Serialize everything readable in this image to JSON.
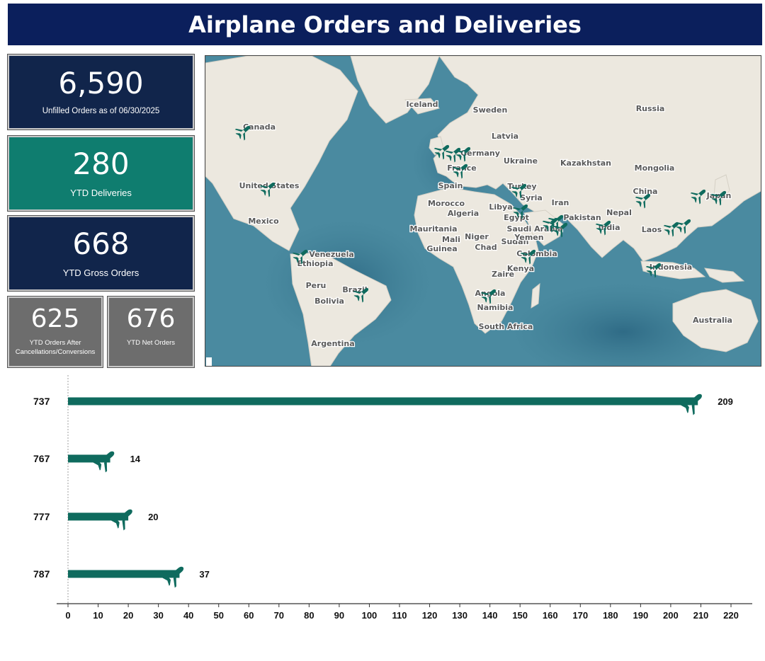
{
  "header": {
    "title": "Airplane Orders and Deliveries"
  },
  "kpis": {
    "unfilled": {
      "value": "6,590",
      "label": "Unfilled Orders as of 06/30/2025"
    },
    "deliveries": {
      "value": "280",
      "label": "YTD Deliveries"
    },
    "gross": {
      "value": "668",
      "label": "YTD Gross Orders"
    },
    "after_cancel": {
      "value": "625",
      "label_line1": "YTD Orders After",
      "label_line2": "Cancellations/Conversions"
    },
    "net": {
      "value": "676",
      "label": "YTD Net Orders"
    }
  },
  "colors": {
    "navy": "#11254b",
    "teal": "#0f7d6f",
    "gray": "#6d6d6d",
    "ocean": "#3f7f95",
    "land": "#ede9e0",
    "bar": "#0f6b5e"
  },
  "map": {
    "labels": [
      {
        "text": "Iceland"
      },
      {
        "text": "Sweden"
      },
      {
        "text": "Russia"
      },
      {
        "text": "Canada"
      },
      {
        "text": "Latvia"
      },
      {
        "text": "Germany"
      },
      {
        "text": "Ukraine"
      },
      {
        "text": "Kazakhstan"
      },
      {
        "text": "Mongolia"
      },
      {
        "text": "France"
      },
      {
        "text": "United States"
      },
      {
        "text": "Spain"
      },
      {
        "text": "Turkey"
      },
      {
        "text": "Syria"
      },
      {
        "text": "China"
      },
      {
        "text": "Japan"
      },
      {
        "text": "Iran"
      },
      {
        "text": "Morocco"
      },
      {
        "text": "Libya"
      },
      {
        "text": "Algeria"
      },
      {
        "text": "Egypt"
      },
      {
        "text": "Pakistan"
      },
      {
        "text": "Nepal"
      },
      {
        "text": "Mexico"
      },
      {
        "text": "Saudi Arabia"
      },
      {
        "text": "India"
      },
      {
        "text": "Laos"
      },
      {
        "text": "Mauritania"
      },
      {
        "text": "Niger"
      },
      {
        "text": "Mali"
      },
      {
        "text": "Chad"
      },
      {
        "text": "Sudan"
      },
      {
        "text": "Yemen"
      },
      {
        "text": "Guinea"
      },
      {
        "text": "Venezuela"
      },
      {
        "text": "Ethiopia"
      },
      {
        "text": "Colombia"
      },
      {
        "text": "Kenya"
      },
      {
        "text": "Indonesia"
      },
      {
        "text": "Zaire"
      },
      {
        "text": "Peru"
      },
      {
        "text": "Brazil"
      },
      {
        "text": "Angola"
      },
      {
        "text": "Bolivia"
      },
      {
        "text": "Namibia"
      },
      {
        "text": "Australia"
      },
      {
        "text": "South Africa"
      },
      {
        "text": "Argentina"
      }
    ],
    "plane_icon": "airplane-icon"
  },
  "chart_data": {
    "type": "bar",
    "orientation": "horizontal",
    "categories": [
      "737",
      "767",
      "777",
      "787"
    ],
    "values": [
      209,
      14,
      20,
      37
    ],
    "xlim": [
      0,
      220
    ],
    "xticks": [
      0,
      10,
      20,
      30,
      40,
      50,
      60,
      70,
      80,
      90,
      100,
      110,
      120,
      130,
      140,
      150,
      160,
      170,
      180,
      190,
      200,
      210,
      220
    ],
    "bar_end_icon": "airplane-icon",
    "title": "",
    "xlabel": "",
    "ylabel": "",
    "grid": false
  }
}
